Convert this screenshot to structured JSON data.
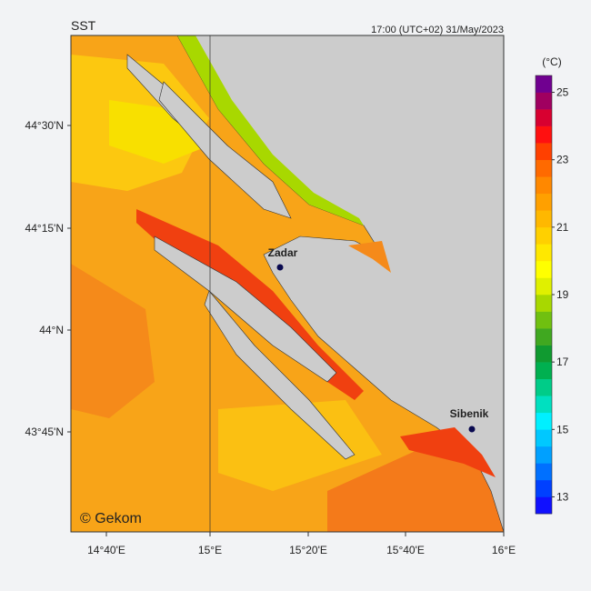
{
  "title": "SST",
  "timestamp": "17:00 (UTC+02)  31/May/2023",
  "credit": "© Gekom",
  "cities": [
    {
      "name": "Zadar"
    },
    {
      "name": "Sibenik"
    }
  ],
  "latitude_labels": [
    "44°30'N",
    "44°15'N",
    "44°N",
    "43°45'N"
  ],
  "longitude_labels": [
    "14°40'E",
    "15°E",
    "15°20'E",
    "15°40'E",
    "16°E"
  ],
  "colorbar": {
    "unit": "(°C)",
    "range": [
      12.5,
      25.5
    ],
    "ticks": [
      13,
      15,
      17,
      19,
      21,
      23,
      25
    ],
    "colors": [
      "#1010ff",
      "#0040ff",
      "#0070ff",
      "#00a0ff",
      "#00c8ff",
      "#00f0ff",
      "#00e0c0",
      "#00cc88",
      "#00b050",
      "#109a30",
      "#40a820",
      "#70c010",
      "#a8d800",
      "#e0f000",
      "#ffff00",
      "#ffe800",
      "#ffd000",
      "#ffb800",
      "#ffa000",
      "#ff8800",
      "#ff6a00",
      "#ff4000",
      "#ff1010",
      "#d80030",
      "#a00060",
      "#700090"
    ]
  }
}
